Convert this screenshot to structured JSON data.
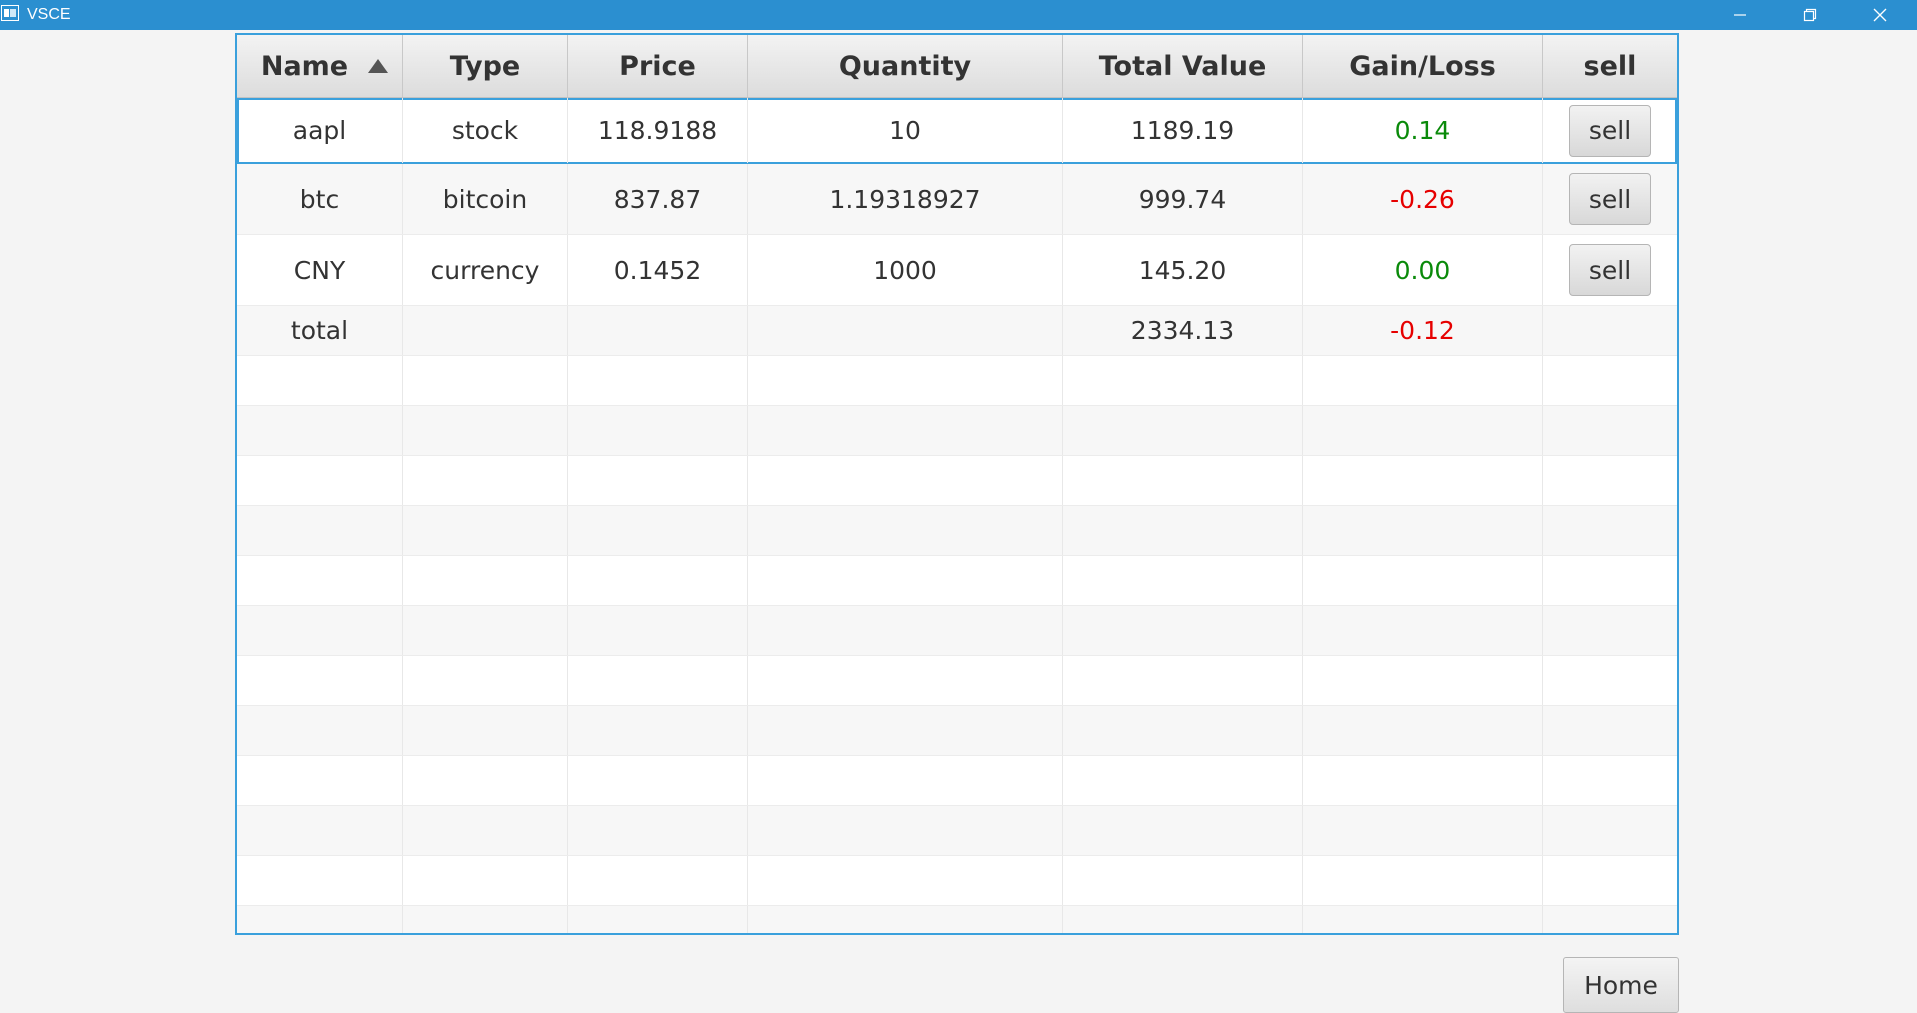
{
  "window": {
    "title": "VSCE",
    "accent": "#2b8fd0"
  },
  "table": {
    "columns": [
      "Name",
      "Type",
      "Price",
      "Quantity",
      "Total Value",
      "Gain/Loss",
      "sell"
    ],
    "sorted_column": "Name",
    "sort_direction": "ascending",
    "rows": [
      {
        "name": "aapl",
        "type": "stock",
        "price": "118.9188",
        "quantity": "10",
        "total_value": "1189.19",
        "gain_loss": "0.14",
        "gain_status": "gain",
        "sell_label": "sell"
      },
      {
        "name": "btc",
        "type": "bitcoin",
        "price": "837.87",
        "quantity": "1.19318927",
        "total_value": "999.74",
        "gain_loss": "-0.26",
        "gain_status": "loss",
        "sell_label": "sell"
      },
      {
        "name": "CNY",
        "type": "currency",
        "price": "0.1452",
        "quantity": "1000",
        "total_value": "145.20",
        "gain_loss": "0.00",
        "gain_status": "gain",
        "sell_label": "sell"
      }
    ],
    "total_row": {
      "name": "total",
      "total_value": "2334.13",
      "gain_loss": "-0.12",
      "gain_status": "loss"
    },
    "colors": {
      "gain": "#0a8a0a",
      "loss": "#e60000",
      "focus_border": "#3aa0dc"
    }
  },
  "footer": {
    "home_label": "Home"
  }
}
